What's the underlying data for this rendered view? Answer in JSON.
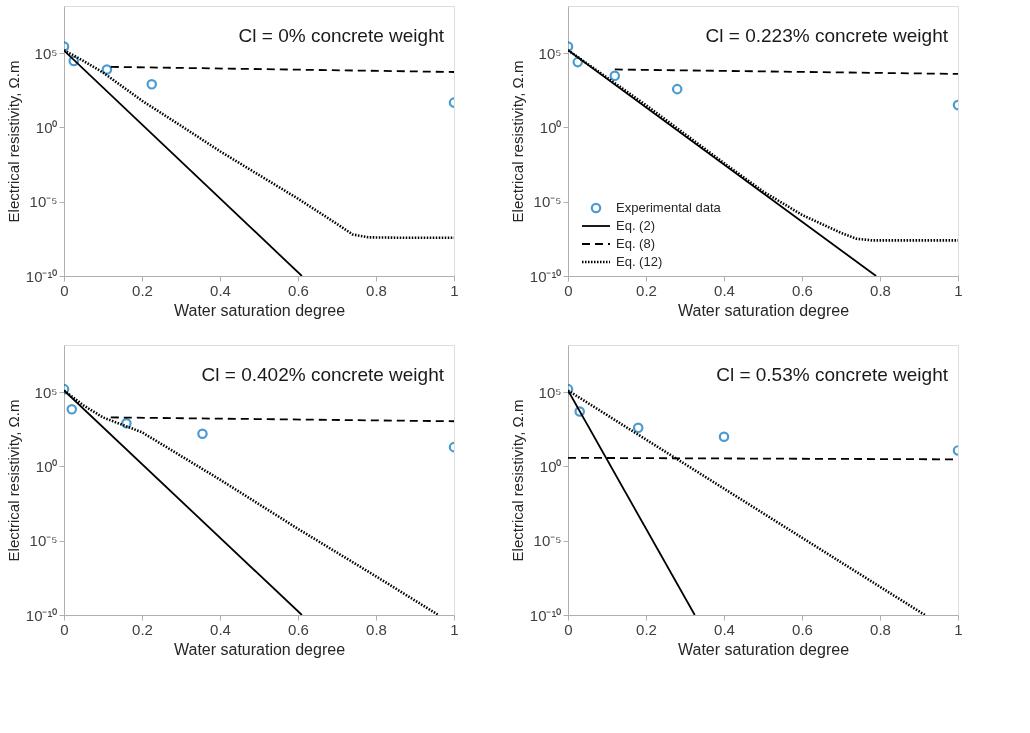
{
  "chart_data": [
    {
      "type": "line",
      "xlabel": "Water saturation degree",
      "ylabel": "Electrical resistivity, Ω.m",
      "log": "y",
      "legend": false,
      "annotations": [
        "Cl = 0% concrete weight"
      ],
      "xlim": [
        0,
        1
      ],
      "xticks": [
        0,
        0.2,
        0.4,
        0.6,
        0.8,
        1
      ],
      "ylim": [
        1e-10,
        150000000.0
      ],
      "yticks": [
        {
          "value": 1e-10,
          "label": "10⁻¹⁰"
        },
        {
          "value": 1e-05,
          "label": "10⁻⁵"
        },
        {
          "value": 1,
          "label": "10⁰"
        },
        {
          "value": 100000.0,
          "label": "10⁵"
        }
      ],
      "series": [
        {
          "type": "scatter",
          "marker": "circle",
          "color": "#0072bd",
          "x": [
            0,
            0.025,
            0.11,
            0.225,
            1
          ],
          "values": [
            280000.0,
            30000.0,
            8000.0,
            800,
            47
          ]
        },
        {
          "line_style": "solid",
          "color": "#000000",
          "x": [
            0,
            0.61
          ],
          "values": [
            150000.0,
            1e-10
          ]
        },
        {
          "line_style": "dashed",
          "color": "#000000",
          "x": [
            0.12,
            1
          ],
          "values": [
            12000.0,
            5400.0
          ]
        },
        {
          "line_style": "dotted",
          "color": "#000000",
          "x": [
            0,
            0.05,
            0.1,
            0.2,
            0.3,
            0.4,
            0.5,
            0.6,
            0.7,
            0.74,
            0.78,
            0.85,
            1
          ],
          "values": [
            160000.0,
            30000.0,
            5000.0,
            63,
            1.3,
            0.025,
            0.00063,
            1.6e-05,
            3.2e-07,
            6.3e-08,
            4e-08,
            3.8e-08,
            3.8e-08
          ]
        }
      ]
    },
    {
      "type": "line",
      "xlabel": "Water saturation degree",
      "ylabel": "Electrical resistivity, Ω.m",
      "log": "y",
      "legend": "bottom left",
      "annotations": [
        "Cl = 0.223% concrete weight"
      ],
      "xlim": [
        0,
        1
      ],
      "xticks": [
        0,
        0.2,
        0.4,
        0.6,
        0.8,
        1
      ],
      "ylim": [
        1e-10,
        150000000.0
      ],
      "yticks": [
        {
          "value": 1e-10,
          "label": "10⁻¹⁰"
        },
        {
          "value": 1e-05,
          "label": "10⁻⁵"
        },
        {
          "value": 1,
          "label": "10⁰"
        },
        {
          "value": 100000.0,
          "label": "10⁵"
        }
      ],
      "series": [
        {
          "name": "Experimental data",
          "type": "scatter",
          "marker": "circle",
          "color": "#0072bd",
          "x": [
            0,
            0.025,
            0.12,
            0.28,
            1
          ],
          "values": [
            280000.0,
            25000.0,
            3000.0,
            380,
            32
          ]
        },
        {
          "name": "Eq. (2)",
          "line_style": "solid",
          "color": "#000000",
          "x": [
            0,
            0.79
          ],
          "values": [
            160000.0,
            1e-10
          ]
        },
        {
          "name": "Eq. (8)",
          "line_style": "dashed",
          "color": "#000000",
          "x": [
            0.12,
            1
          ],
          "values": [
            8000.0,
            4000.0
          ]
        },
        {
          "name": "Eq. (12)",
          "line_style": "dotted",
          "color": "#000000",
          "x": [
            0,
            0.2,
            0.4,
            0.5,
            0.6,
            0.7,
            0.74,
            0.78,
            1
          ],
          "values": [
            160000.0,
            32,
            0.004,
            5e-05,
            1.3e-06,
            8e-08,
            3.2e-08,
            2.5e-08,
            2.5e-08
          ]
        }
      ]
    },
    {
      "type": "line",
      "xlabel": "Water saturation degree",
      "ylabel": "Electrical resistivity, Ω.m",
      "log": "y",
      "legend": false,
      "annotations": [
        "Cl = 0.402% concrete weight"
      ],
      "xlim": [
        0,
        1
      ],
      "xticks": [
        0,
        0.2,
        0.4,
        0.6,
        0.8,
        1
      ],
      "ylim": [
        1e-10,
        150000000.0
      ],
      "yticks": [
        {
          "value": 1e-10,
          "label": "10⁻¹⁰"
        },
        {
          "value": 1e-05,
          "label": "10⁻⁵"
        },
        {
          "value": 1,
          "label": "10⁰"
        },
        {
          "value": 100000.0,
          "label": "10⁵"
        }
      ],
      "series": [
        {
          "type": "scatter",
          "marker": "circle",
          "color": "#0072bd",
          "x": [
            0,
            0.02,
            0.16,
            0.355,
            1
          ],
          "values": [
            160000.0,
            7000.0,
            800,
            160,
            20
          ]
        },
        {
          "line_style": "solid",
          "color": "#000000",
          "x": [
            0,
            0.61
          ],
          "values": [
            130000.0,
            1e-10
          ]
        },
        {
          "line_style": "dashed",
          "color": "#000000",
          "x": [
            0.12,
            1
          ],
          "values": [
            2000.0,
            1100.0
          ]
        },
        {
          "line_style": "dotted",
          "color": "#000000",
          "x": [
            0,
            0.05,
            0.1,
            0.2,
            0.4,
            0.6,
            0.8,
            0.96
          ],
          "values": [
            130000.0,
            13000.0,
            2000.0,
            200,
            0.13,
            6.3e-05,
            4e-08,
            1e-10
          ]
        }
      ]
    },
    {
      "type": "line",
      "xlabel": "Water saturation degree",
      "ylabel": "Electrical resistivity, Ω.m",
      "log": "y",
      "legend": false,
      "annotations": [
        "Cl = 0.53% concrete weight"
      ],
      "xlim": [
        0,
        1
      ],
      "xticks": [
        0,
        0.2,
        0.4,
        0.6,
        0.8,
        1
      ],
      "ylim": [
        1e-10,
        150000000.0
      ],
      "yticks": [
        {
          "value": 1e-10,
          "label": "10⁻¹⁰"
        },
        {
          "value": 1e-05,
          "label": "10⁻⁵"
        },
        {
          "value": 1,
          "label": "10⁰"
        },
        {
          "value": 100000.0,
          "label": "10⁵"
        }
      ],
      "series": [
        {
          "type": "scatter",
          "marker": "circle",
          "color": "#0072bd",
          "x": [
            0,
            0.03,
            0.18,
            0.4,
            1
          ],
          "values": [
            160000.0,
            5000.0,
            400,
            100,
            12
          ]
        },
        {
          "line_style": "solid",
          "color": "#000000",
          "x": [
            0,
            0.325
          ],
          "values": [
            130000.0,
            1e-10
          ]
        },
        {
          "line_style": "dashed",
          "color": "#000000",
          "x": [
            0,
            1
          ],
          "values": [
            3.8,
            3
          ]
        },
        {
          "line_style": "dotted",
          "color": "#000000",
          "x": [
            0,
            0.915
          ],
          "values": [
            130000.0,
            1e-10
          ]
        }
      ]
    }
  ]
}
